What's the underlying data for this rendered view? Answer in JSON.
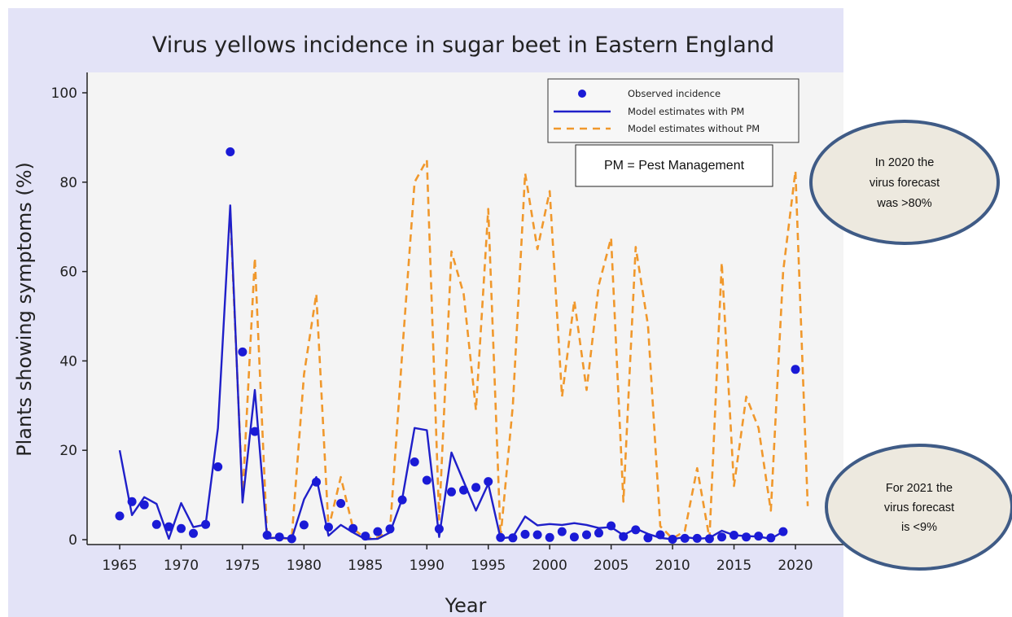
{
  "chart_data": {
    "type": "line",
    "title": "Virus yellows incidence in sugar beet in Eastern England",
    "xlabel": "Year",
    "ylabel": "Plants showing symptoms (%)",
    "xlim": [
      1963.5,
      2023.5
    ],
    "ylim": [
      -1.5,
      104
    ],
    "xticks": [
      1965,
      1970,
      1975,
      1980,
      1985,
      1990,
      1995,
      2000,
      2005,
      2010,
      2015,
      2020
    ],
    "yticks": [
      0,
      20,
      40,
      60,
      80,
      100
    ],
    "grid": false,
    "legend_position": "top-right",
    "colors": {
      "observed": "#1a1ad6",
      "with_pm": "#1f1fc9",
      "without_pm": "#f0982c",
      "plot_bg": "#f4f4f4",
      "outer_bg": "#e3e3f7",
      "ellipse_fill": "#ede9df",
      "ellipse_stroke": "#3f5b86"
    },
    "series": [
      {
        "name": "Observed incidence",
        "style": "markers",
        "x": [
          1965,
          1966,
          1967,
          1968,
          1969,
          1970,
          1971,
          1972,
          1973,
          1974,
          1975,
          1976,
          1977,
          1978,
          1979,
          1980,
          1981,
          1982,
          1983,
          1984,
          1985,
          1986,
          1987,
          1988,
          1989,
          1990,
          1991,
          1992,
          1993,
          1994,
          1995,
          1996,
          1997,
          1998,
          1999,
          2000,
          2001,
          2002,
          2003,
          2004,
          2005,
          2006,
          2007,
          2008,
          2009,
          2010,
          2011,
          2012,
          2013,
          2014,
          2015,
          2016,
          2017,
          2018,
          2019,
          2020
        ],
        "y": [
          5.3,
          8.5,
          7.8,
          3.4,
          2.9,
          2.5,
          1.4,
          3.4,
          16.3,
          86.8,
          42,
          24.2,
          1,
          0.6,
          0.2,
          3.3,
          12.9,
          2.8,
          8.1,
          2.5,
          0.8,
          1.8,
          2.4,
          8.9,
          17.4,
          13.3,
          2.4,
          10.7,
          11.1,
          11.7,
          13,
          0.5,
          0.4,
          1.2,
          1.1,
          0.5,
          1.8,
          0.6,
          1.1,
          1.5,
          3.1,
          0.7,
          2.2,
          0.4,
          1.1,
          0.1,
          0.3,
          0.3,
          0.2,
          0.6,
          1,
          0.6,
          0.8,
          0.4,
          1.8,
          38.1
        ]
      },
      {
        "name": "Model estimates with PM",
        "style": "solid",
        "x": [
          1965,
          1966,
          1967,
          1968,
          1969,
          1970,
          1971,
          1972,
          1973,
          1974,
          1975,
          1976,
          1977,
          1978,
          1979,
          1980,
          1981,
          1982,
          1983,
          1984,
          1985,
          1986,
          1987,
          1988,
          1989,
          1990,
          1991,
          1992,
          1993,
          1994,
          1995,
          1996,
          1997,
          1998,
          1999,
          2000,
          2001,
          2002,
          2003,
          2004,
          2005,
          2006,
          2007,
          2008,
          2009,
          2010,
          2011,
          2012,
          2013,
          2014,
          2015,
          2016,
          2017,
          2018,
          2019
        ],
        "y": [
          20,
          5.5,
          9.5,
          8,
          0.2,
          8.2,
          2.8,
          3.4,
          25,
          74.8,
          8.3,
          33.5,
          0.3,
          0.5,
          0.2,
          9,
          14,
          0.9,
          3.3,
          1.6,
          0.1,
          0.2,
          1.6,
          9.2,
          25,
          24.5,
          0.6,
          19.5,
          13,
          6.5,
          12.5,
          0.3,
          0.6,
          5.2,
          3.2,
          3.5,
          3.3,
          3.7,
          3.3,
          2.6,
          2.8,
          1,
          2.5,
          1.3,
          0.4,
          0.1,
          0.6,
          0.2,
          0.4,
          2,
          1,
          0.8,
          0.7,
          0.2,
          1.8
        ]
      },
      {
        "name": "Model estimates without PM",
        "style": "dashed",
        "x": [
          1974,
          1975,
          1976,
          1977,
          1978,
          1979,
          1980,
          1981,
          1982,
          1983,
          1984,
          1985,
          1986,
          1987,
          1988,
          1989,
          1990,
          1991,
          1992,
          1993,
          1994,
          1995,
          1996,
          1997,
          1998,
          1999,
          2000,
          2001,
          2002,
          2003,
          2004,
          2005,
          2006,
          2007,
          2008,
          2009,
          2010,
          2011,
          2012,
          2013,
          2014,
          2015,
          2016,
          2017,
          2018,
          2019,
          2020,
          2021
        ],
        "y": [
          73,
          9.5,
          63,
          0.5,
          0.3,
          0.3,
          37,
          55,
          2.5,
          14,
          2.5,
          0.3,
          0.5,
          2,
          42,
          80,
          85,
          4.5,
          64.5,
          55,
          29,
          74,
          0.5,
          30,
          82,
          65,
          78,
          32,
          53.5,
          33.5,
          57,
          67.5,
          8.5,
          65.5,
          48,
          3,
          0.2,
          2,
          16,
          0.3,
          62,
          12,
          32,
          25,
          6.5,
          60,
          82.5,
          7.5
        ]
      }
    ],
    "annotations": {
      "pm_box": "PM = Pest Management",
      "ellipse_top": [
        "In 2020 the",
        "virus forecast",
        "was >80%"
      ],
      "ellipse_bottom": [
        "For 2021 the",
        "virus forecast",
        "is <9%"
      ]
    }
  }
}
